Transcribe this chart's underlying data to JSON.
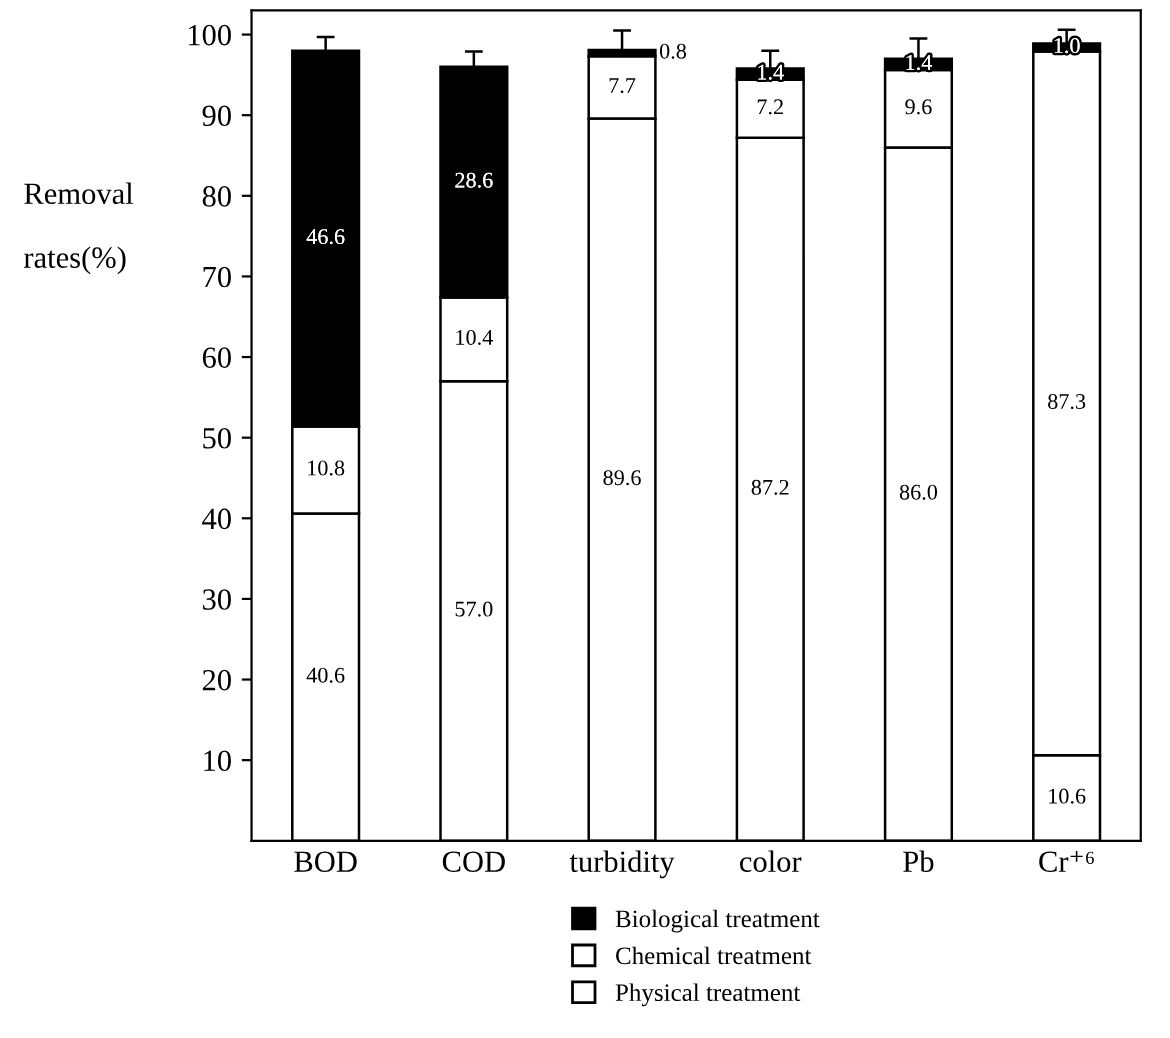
{
  "chart_data": {
    "type": "bar",
    "stacked": true,
    "ylabel": "Removal\n\nrates(%)",
    "categories": [
      "BOD",
      "COD",
      "turbidity",
      "color",
      "Pb",
      "Cr⁺⁶"
    ],
    "series": [
      {
        "name": "Physical treatment",
        "color": "#ffffff",
        "values": [
          40.6,
          57.0,
          89.6,
          87.2,
          86.0,
          10.6
        ],
        "value_labels": [
          "40.6",
          "57.0",
          "89.6",
          "87.2",
          "86.0",
          "10.6"
        ]
      },
      {
        "name": "Chemical treatment",
        "color": "#ffffff",
        "values": [
          10.8,
          10.4,
          7.7,
          7.2,
          9.6,
          87.3
        ],
        "value_labels": [
          "10.8",
          "10.4",
          "7.7",
          "7.2",
          "9.6",
          "87.3"
        ]
      },
      {
        "name": "Biological treatment",
        "color": "#000000",
        "values": [
          46.6,
          28.6,
          0.8,
          1.4,
          1.4,
          1.0
        ],
        "value_labels": [
          "46.6",
          "28.6",
          "0.8",
          "1.4",
          "1.4",
          "1.0"
        ],
        "errors": [
          [
            98.0,
            99.7
          ],
          [
            96.0,
            97.9
          ],
          [
            98.1,
            100.5
          ],
          [
            95.8,
            98.0
          ],
          [
            97.0,
            99.5
          ],
          [
            98.9,
            100.6
          ]
        ]
      }
    ],
    "ylim": [
      0,
      103
    ],
    "yticks": [
      10,
      20,
      30,
      40,
      50,
      60,
      70,
      80,
      90,
      100
    ],
    "legend": "bottom",
    "grid": false
  }
}
